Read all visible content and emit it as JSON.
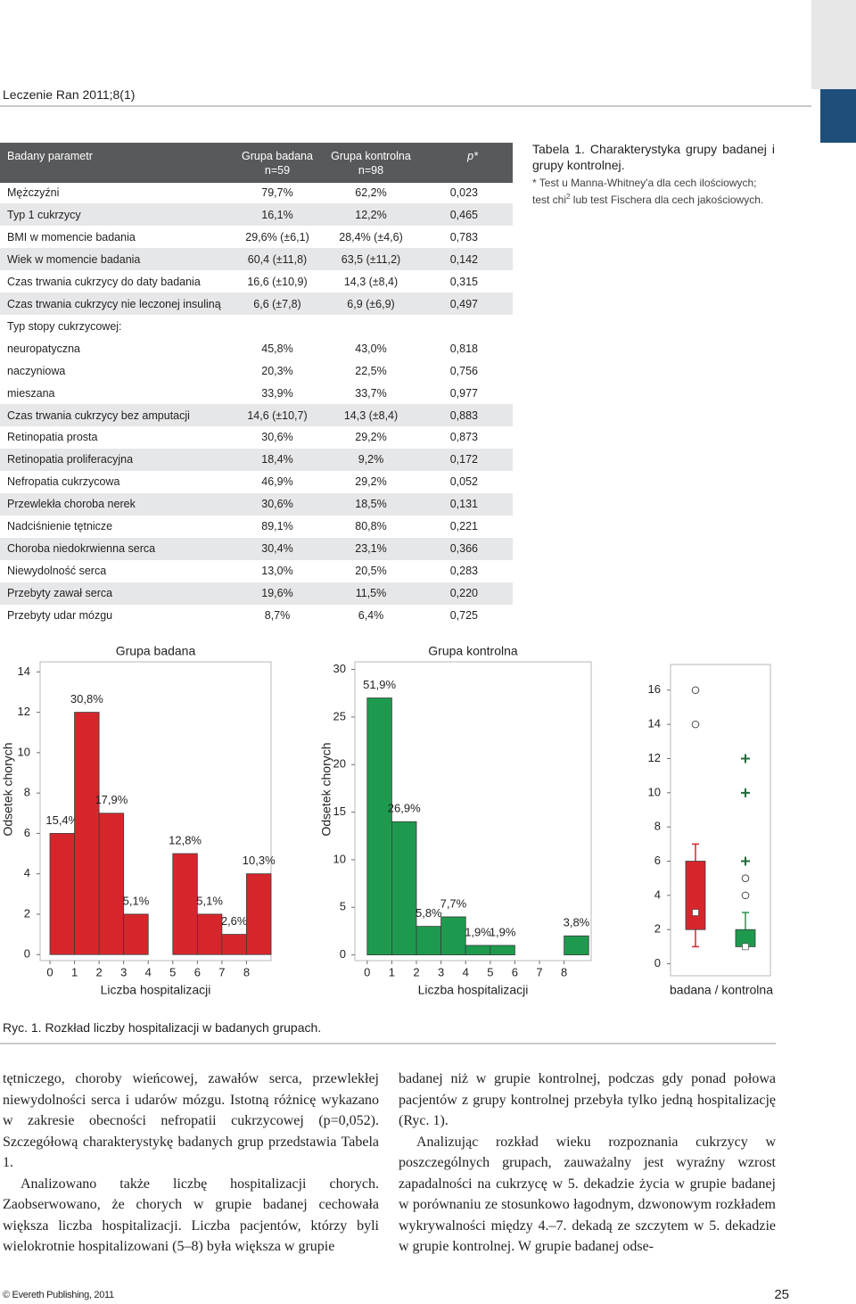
{
  "header": {
    "journal": "Leczenie Ran 2011;8(1)"
  },
  "table": {
    "header": {
      "parameter": "Badany parametr",
      "group": "Grupa badana",
      "group_n": "n=59",
      "control": "Grupa kontrolna",
      "control_n": "n=98",
      "p": "p*"
    },
    "rows": [
      [
        "Mężczyźni",
        "79,7%",
        "62,2%",
        "0,023"
      ],
      [
        "Typ 1 cukrzycy",
        "16,1%",
        "12,2%",
        "0,465"
      ],
      [
        "BMI w momencie badania",
        "29,6% (±6,1)",
        "28,4% (±4,6)",
        "0,783"
      ],
      [
        "Wiek w momencie badania",
        "60,4 (±11,8)",
        "63,5 (±11,2)",
        "0,142"
      ],
      [
        "Czas trwania cukrzycy do daty badania",
        "16,6 (±10,9)",
        "14,3 (±8,4)",
        "0,315"
      ],
      [
        "Czas trwania cukrzycy nie leczonej insuliną",
        "6,6 (±7,8)",
        "6,9 (±6,9)",
        "0,497"
      ],
      [
        "Typ stopy cukrzycowej:"
      ],
      [
        "neuropatyczna",
        "45,8%",
        "43,0%",
        "0,818"
      ],
      [
        "naczyniowa",
        "20,3%",
        "22,5%",
        "0,756"
      ],
      [
        "mieszana",
        "33,9%",
        "33,7%",
        "0,977"
      ],
      [
        "Czas trwania cukrzycy bez amputacji",
        "14,6 (±10,7)",
        "14,3 (±8,4)",
        "0,883"
      ],
      [
        "Retinopatia prosta",
        "30,6%",
        "29,2%",
        "0,873"
      ],
      [
        "Retinopatia proliferacyjna",
        "18,4%",
        "9,2%",
        "0,172"
      ],
      [
        "Nefropatia cukrzycowa",
        "46,9%",
        "29,2%",
        "0,052"
      ],
      [
        "Przewlekła choroba nerek",
        "30,6%",
        "18,5%",
        "0,131"
      ],
      [
        "Nadciśnienie tętnicze",
        "89,1%",
        "80,8%",
        "0,221"
      ],
      [
        "Choroba niedokrwienna serca",
        "30,4%",
        "23,1%",
        "0,366"
      ],
      [
        "Niewydolność serca",
        "13,0%",
        "20,5%",
        "0,283"
      ],
      [
        "Przebyty zawał serca",
        "19,6%",
        "11,5%",
        "0,220"
      ],
      [
        "Przebyty udar mózgu",
        "8,7%",
        "6,4%",
        "0,725"
      ]
    ]
  },
  "table_caption": {
    "title": "Tabela 1. Charakterystyka grupy badanej i grupy kontrolnej.",
    "note": [
      "* Test u Manna-Whitney'a dla cech ilościowych; test chi",
      "2",
      " lub test Fischera dla cech jakościowych."
    ]
  },
  "chart_data": [
    {
      "type": "bar",
      "title": "Grupa badana",
      "ylabel": "Odsetek chorych",
      "xlabel": "Liczba hospitalizacji",
      "x": [
        0,
        1,
        2,
        3,
        4,
        5,
        6,
        7,
        8
      ],
      "values": [
        6,
        12,
        7,
        2,
        0,
        5,
        2,
        1,
        4
      ],
      "value_labels": [
        "15,4%",
        "30,8%",
        "17,9%",
        "5,1%",
        null,
        "12,8%",
        "5,1%",
        "2,6%",
        "10,3%"
      ],
      "color": "#d7262b",
      "xlim": [
        -0.4,
        9
      ],
      "xticks": [
        0,
        1,
        2,
        3,
        4,
        5,
        6,
        7,
        8
      ],
      "ylim": [
        -0.3,
        14.5
      ],
      "yticks": [
        0,
        2,
        4,
        6,
        8,
        10,
        12,
        14
      ]
    },
    {
      "type": "bar",
      "title": "Grupa kontrolna",
      "ylabel": "Odsetek chorych",
      "xlabel": "Liczba hospitalizacji",
      "x": [
        0,
        1,
        2,
        3,
        4,
        5,
        6,
        7,
        8
      ],
      "values": [
        27,
        14,
        3,
        4,
        1,
        1,
        0,
        0,
        2
      ],
      "value_labels": [
        "51,9%",
        "26,9%",
        "5,8%",
        "7,7%",
        "1,9%",
        "1,9%",
        null,
        null,
        "3,8%"
      ],
      "color": "#1e9a4f",
      "xlim": [
        -0.5,
        9.1
      ],
      "xticks": [
        0,
        1,
        2,
        3,
        4,
        5,
        6,
        7,
        8
      ],
      "ylim": [
        -0.6,
        30.8
      ],
      "yticks": [
        0,
        5,
        10,
        15,
        20,
        25,
        30
      ]
    },
    {
      "type": "box",
      "xlabel": "badana / kontrolna",
      "ylim": [
        -0.7,
        17.5
      ],
      "yticks": [
        0,
        2,
        4,
        6,
        8,
        10,
        12,
        14,
        16
      ],
      "series": [
        {
          "color": "#d7262b",
          "low": 1,
          "q1": 2,
          "median": 3,
          "q3": 6,
          "high": 7,
          "outliers": [
            14,
            16
          ]
        },
        {
          "color": "#1e9a4f",
          "low": 1,
          "q1": 1,
          "median": 1,
          "q3": 2,
          "high": 3,
          "outliers": [
            4,
            5
          ],
          "extremes": [
            6,
            10,
            12
          ]
        }
      ]
    }
  ],
  "figure_caption": "Ryc. 1. Rozkład liczby hospitalizacji w badanych grupach.",
  "body": {
    "left": [
      "tętniczego, choroby wieńcowej, zawałów serca, przewlekłej niewydolności serca i udarów mózgu. Istotną różnicę wykazano w zakresie obecności nefropatii cukrzycowej (p=0,052). Szczegółową charakterystykę badanych grup przedstawia Tabela 1.",
      "Analizowano także liczbę hospitalizacji chorych. Zaobserwowano, że chorych w grupie badanej cechowała większa liczba hospitalizacji. Liczba pacjentów, którzy byli wielokrotnie hospitalizowani (5–8) była większa w grupie"
    ],
    "right": [
      "badanej niż w grupie kontrolnej, podczas gdy ponad połowa pacjentów z grupy kontrolnej przebyła tylko jedną hospitalizację (Ryc. 1).",
      "Analizując rozkład wieku rozpoznania cukrzycy w poszczególnych grupach, zauważalny jest wyraźny wzrost zapadalności na cukrzycę w 5. dekadzie życia w grupie badanej w porównaniu ze stosunkowo łagodnym, dzwonowym rozkładem wykrywalności między 4.–7. dekadą ze szczytem w 5. dekadzie w grupie kontrolnej. W grupie badanej odse-"
    ]
  },
  "footer": {
    "publisher": "© Evereth Publishing, 2011",
    "page": "25"
  }
}
